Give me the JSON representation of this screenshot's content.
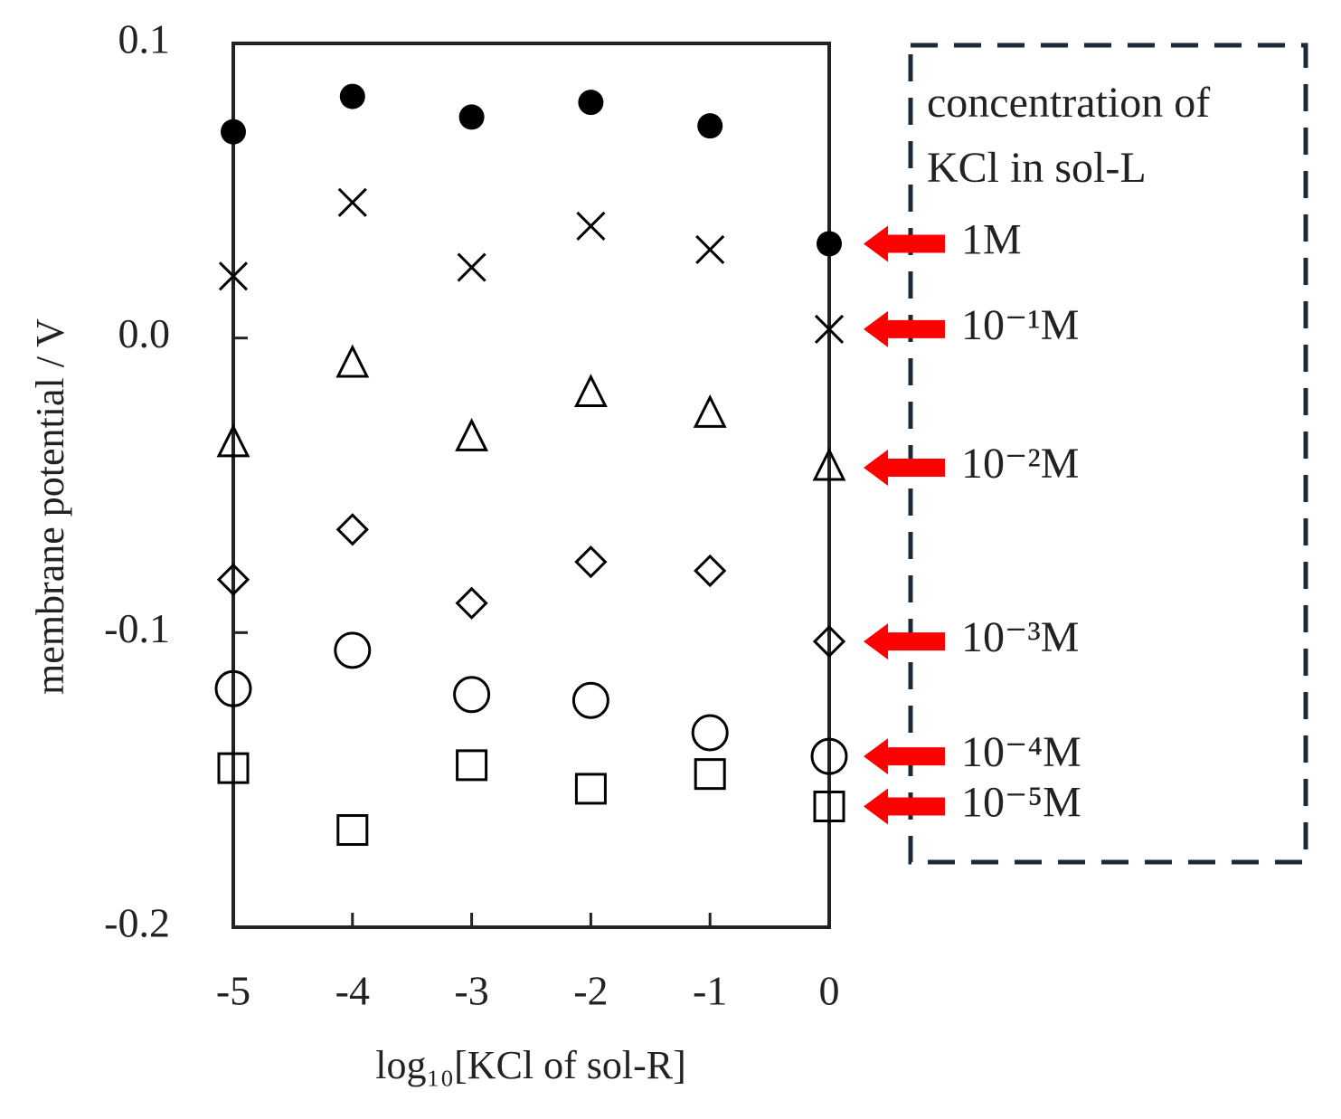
{
  "chart_data": {
    "type": "scatter",
    "x_label": "log₁₀[KCl of sol-R]",
    "y_label": "membrane potential / V",
    "legend_title": [
      "concentration of",
      "KCl in sol-L"
    ],
    "x": [
      -5,
      -4,
      -3,
      -2,
      -1,
      0
    ],
    "xlim": [
      -5,
      0
    ],
    "xticks": [
      -5,
      -4,
      -3,
      -2,
      -1,
      0
    ],
    "ylim": [
      -0.2,
      0.1
    ],
    "yticks": [
      0.1,
      {
        "value": 0,
        "label": "0.0"
      },
      -0.1,
      -0.2
    ],
    "series": [
      {
        "name": "1M",
        "color": "#000000",
        "marker": "filled-circle",
        "values": [
          0.07,
          0.082,
          0.075,
          0.08,
          0.072,
          0.032
        ]
      },
      {
        "name": "10⁻¹M",
        "color": "#000000",
        "marker": "x",
        "values": [
          0.021,
          0.046,
          0.024,
          0.038,
          0.03,
          0.003
        ]
      },
      {
        "name": "10⁻²M",
        "color": "#000000",
        "marker": "triangle",
        "values": [
          -0.036,
          -0.009,
          -0.034,
          -0.019,
          -0.026,
          -0.044
        ]
      },
      {
        "name": "10⁻³M",
        "color": "#000000",
        "marker": "diamond",
        "values": [
          -0.082,
          -0.065,
          -0.09,
          -0.076,
          -0.079,
          -0.103
        ]
      },
      {
        "name": "10⁻⁴M",
        "color": "#000000",
        "marker": "circle",
        "values": [
          -0.119,
          -0.106,
          -0.121,
          -0.123,
          -0.134,
          -0.142
        ]
      },
      {
        "name": "10⁻⁵M",
        "color": "#000000",
        "marker": "square",
        "values": [
          -0.146,
          -0.167,
          -0.145,
          -0.153,
          -0.148,
          -0.159
        ]
      }
    ]
  }
}
